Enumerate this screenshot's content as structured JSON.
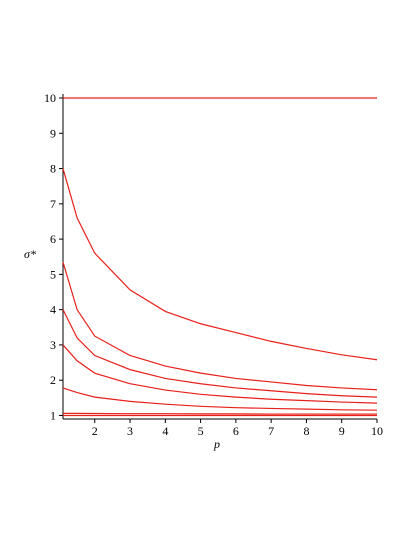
{
  "chart_data": {
    "type": "line",
    "xlabel": "p",
    "ylabel": "σ*",
    "x": [
      1.1,
      1.5,
      2,
      3,
      4,
      5,
      6,
      7,
      8,
      9,
      10
    ],
    "series": [
      {
        "color": "#e8201a",
        "values": [
          10,
          10,
          10,
          10,
          10,
          10,
          10,
          10,
          10,
          10,
          10
        ]
      },
      {
        "color": "#e8201a",
        "values": [
          8.0,
          6.6,
          5.6,
          4.56,
          3.95,
          3.6,
          3.35,
          3.1,
          2.9,
          2.72,
          2.58
        ]
      },
      {
        "color": "#e8201a",
        "values": [
          5.35,
          4.0,
          3.25,
          2.7,
          2.4,
          2.2,
          2.05,
          1.95,
          1.85,
          1.78,
          1.73
        ]
      },
      {
        "color": "#e8201a",
        "values": [
          4.0,
          3.2,
          2.7,
          2.3,
          2.05,
          1.9,
          1.78,
          1.7,
          1.62,
          1.56,
          1.52
        ]
      },
      {
        "color": "#e8201a",
        "values": [
          3.0,
          2.55,
          2.2,
          1.9,
          1.72,
          1.6,
          1.52,
          1.46,
          1.42,
          1.38,
          1.35
        ]
      },
      {
        "color": "#e8201a",
        "values": [
          1.78,
          1.65,
          1.52,
          1.4,
          1.32,
          1.26,
          1.22,
          1.2,
          1.18,
          1.16,
          1.15
        ]
      },
      {
        "color": "#e8201a",
        "values": [
          1.06,
          1.06,
          1.055,
          1.05,
          1.05,
          1.045,
          1.045,
          1.04,
          1.04,
          1.04,
          1.04
        ]
      },
      {
        "color": "#e8201a",
        "values": [
          1.0,
          1.0,
          1.0,
          1.0,
          1.0,
          1.0,
          1.0,
          1.0,
          1.0,
          1.0,
          1.0
        ]
      }
    ],
    "xlim": [
      1.1,
      10
    ],
    "ylim": [
      0.9,
      10
    ],
    "xticks": [
      2,
      3,
      4,
      5,
      6,
      7,
      8,
      9,
      10
    ],
    "yticks": [
      1,
      2,
      3,
      4,
      5,
      6,
      7,
      8,
      9,
      10
    ]
  }
}
